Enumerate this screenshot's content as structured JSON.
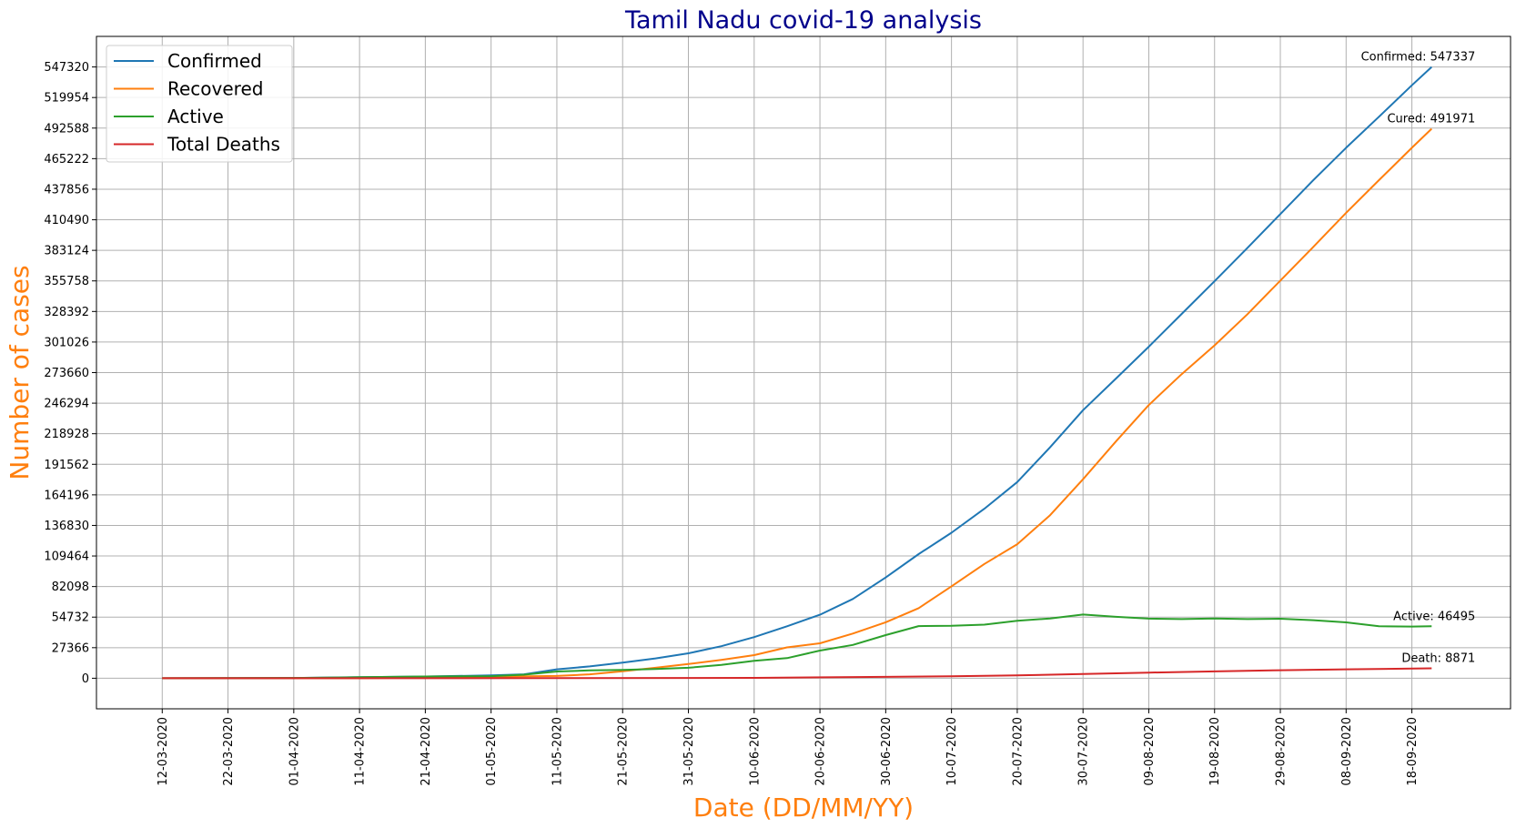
{
  "chart_data": {
    "type": "line",
    "title": "Tamil Nadu covid-19 analysis",
    "xlabel": "Date (DD/MM/YY)",
    "ylabel": "Number of cases",
    "title_color": "#00008b",
    "label_color": "#ff7f0e",
    "x_ticks": [
      "12-03-2020",
      "22-03-2020",
      "01-04-2020",
      "11-04-2020",
      "21-04-2020",
      "01-05-2020",
      "11-05-2020",
      "21-05-2020",
      "31-05-2020",
      "10-06-2020",
      "20-06-2020",
      "30-06-2020",
      "10-07-2020",
      "20-07-2020",
      "30-07-2020",
      "09-08-2020",
      "19-08-2020",
      "29-08-2020",
      "08-09-2020",
      "18-09-2020"
    ],
    "x_range": [
      "2020-03-02",
      "2020-10-03"
    ],
    "y_ticks": [
      0,
      27366,
      54732,
      82098,
      109464,
      136830,
      164196,
      191562,
      218928,
      246294,
      273660,
      301026,
      328392,
      355758,
      383124,
      410490,
      437856,
      465222,
      492588,
      519954,
      547320
    ],
    "ylim": [
      -27366,
      574686
    ],
    "grid": true,
    "legend_position": "top-left",
    "series": [
      {
        "name": "Confirmed",
        "color": "#1f77b4",
        "points": [
          [
            "2020-03-12",
            1
          ],
          [
            "2020-04-01",
            234
          ],
          [
            "2020-04-11",
            969
          ],
          [
            "2020-04-21",
            1596
          ],
          [
            "2020-05-01",
            2526
          ],
          [
            "2020-05-06",
            3500
          ],
          [
            "2020-05-11",
            8002
          ],
          [
            "2020-05-16",
            10585
          ],
          [
            "2020-05-21",
            13967
          ],
          [
            "2020-05-26",
            17728
          ],
          [
            "2020-05-31",
            22333
          ],
          [
            "2020-06-05",
            28694
          ],
          [
            "2020-06-10",
            36841
          ],
          [
            "2020-06-15",
            46504
          ],
          [
            "2020-06-20",
            56845
          ],
          [
            "2020-06-25",
            70977
          ],
          [
            "2020-06-30",
            90167
          ],
          [
            "2020-07-05",
            111151
          ],
          [
            "2020-07-10",
            130261
          ],
          [
            "2020-07-15",
            151820
          ],
          [
            "2020-07-20",
            175678
          ],
          [
            "2020-07-25",
            206737
          ],
          [
            "2020-07-30",
            239978
          ],
          [
            "2020-08-04",
            268285
          ],
          [
            "2020-08-09",
            296901
          ],
          [
            "2020-08-14",
            326245
          ],
          [
            "2020-08-19",
            355449
          ],
          [
            "2020-08-24",
            385352
          ],
          [
            "2020-08-29",
            415590
          ],
          [
            "2020-09-03",
            445851
          ],
          [
            "2020-09-08",
            474940
          ],
          [
            "2020-09-13",
            502759
          ],
          [
            "2020-09-18",
            530908
          ],
          [
            "2020-09-21",
            547337
          ]
        ]
      },
      {
        "name": "Recovered",
        "color": "#ff7f0e",
        "points": [
          [
            "2020-03-12",
            0
          ],
          [
            "2020-04-01",
            6
          ],
          [
            "2020-04-11",
            44
          ],
          [
            "2020-04-21",
            635
          ],
          [
            "2020-05-01",
            1312
          ],
          [
            "2020-05-11",
            2051
          ],
          [
            "2020-05-16",
            3538
          ],
          [
            "2020-05-21",
            6282
          ],
          [
            "2020-05-26",
            9342
          ],
          [
            "2020-05-31",
            12757
          ],
          [
            "2020-06-05",
            16395
          ],
          [
            "2020-06-10",
            20705
          ],
          [
            "2020-06-15",
            27624
          ],
          [
            "2020-06-20",
            31316
          ],
          [
            "2020-06-25",
            39999
          ],
          [
            "2020-06-30",
            50074
          ],
          [
            "2020-07-05",
            62778
          ],
          [
            "2020-07-10",
            82324
          ],
          [
            "2020-07-15",
            102310
          ],
          [
            "2020-07-20",
            120000
          ],
          [
            "2020-07-25",
            146000
          ],
          [
            "2020-07-30",
            178178
          ],
          [
            "2020-08-04",
            212000
          ],
          [
            "2020-08-09",
            244675
          ],
          [
            "2020-08-14",
            272251
          ],
          [
            "2020-08-19",
            298000
          ],
          [
            "2020-08-24",
            326000
          ],
          [
            "2020-08-29",
            356000
          ],
          [
            "2020-09-03",
            386173
          ],
          [
            "2020-09-08",
            416715
          ],
          [
            "2020-09-13",
            446000
          ],
          [
            "2020-09-18",
            475000
          ],
          [
            "2020-09-21",
            491971
          ]
        ]
      },
      {
        "name": "Active",
        "color": "#2ca02c",
        "points": [
          [
            "2020-03-12",
            1
          ],
          [
            "2020-04-01",
            226
          ],
          [
            "2020-04-11",
            910
          ],
          [
            "2020-04-21",
            1540
          ],
          [
            "2020-05-01",
            1900
          ],
          [
            "2020-05-06",
            3200
          ],
          [
            "2020-05-11",
            6000
          ],
          [
            "2020-05-16",
            7000
          ],
          [
            "2020-05-21",
            7500
          ],
          [
            "2020-05-26",
            8200
          ],
          [
            "2020-05-31",
            9400
          ],
          [
            "2020-06-05",
            12000
          ],
          [
            "2020-06-10",
            15600
          ],
          [
            "2020-06-15",
            18000
          ],
          [
            "2020-06-20",
            24800
          ],
          [
            "2020-06-25",
            29800
          ],
          [
            "2020-06-30",
            38600
          ],
          [
            "2020-07-05",
            46700
          ],
          [
            "2020-07-10",
            46900
          ],
          [
            "2020-07-15",
            48000
          ],
          [
            "2020-07-20",
            51500
          ],
          [
            "2020-07-25",
            53500
          ],
          [
            "2020-07-30",
            57000
          ],
          [
            "2020-08-04",
            55000
          ],
          [
            "2020-08-09",
            53400
          ],
          [
            "2020-08-14",
            53000
          ],
          [
            "2020-08-19",
            53500
          ],
          [
            "2020-08-24",
            53000
          ],
          [
            "2020-08-29",
            53300
          ],
          [
            "2020-09-03",
            52000
          ],
          [
            "2020-09-08",
            50000
          ],
          [
            "2020-09-13",
            46500
          ],
          [
            "2020-09-18",
            46300
          ],
          [
            "2020-09-21",
            46495
          ]
        ]
      },
      {
        "name": "Total Deaths",
        "color": "#d62728",
        "points": [
          [
            "2020-03-12",
            0
          ],
          [
            "2020-04-11",
            10
          ],
          [
            "2020-05-11",
            53
          ],
          [
            "2020-06-10",
            326
          ],
          [
            "2020-06-30",
            1201
          ],
          [
            "2020-07-10",
            1829
          ],
          [
            "2020-07-20",
            2551
          ],
          [
            "2020-07-30",
            3838
          ],
          [
            "2020-08-09",
            5041
          ],
          [
            "2020-08-19",
            6123
          ],
          [
            "2020-08-29",
            7137
          ],
          [
            "2020-09-08",
            8012
          ],
          [
            "2020-09-21",
            8871
          ]
        ]
      }
    ],
    "annotations": [
      {
        "text": "Confirmed: 547337",
        "x": "2020-09-21",
        "y": 547337
      },
      {
        "text": "Cured: 491971",
        "x": "2020-09-21",
        "y": 491971
      },
      {
        "text": "Active: 46495",
        "x": "2020-09-21",
        "y": 46495
      },
      {
        "text": "Death: 8871",
        "x": "2020-09-21",
        "y": 8871
      }
    ]
  }
}
